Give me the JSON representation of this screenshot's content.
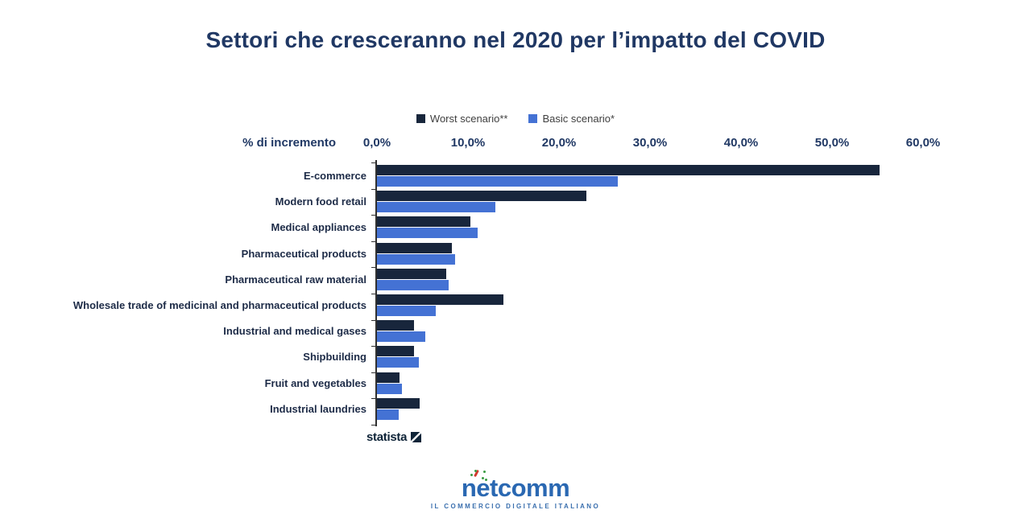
{
  "title": "Settori che cresceranno nel 2020 per l’impatto del COVID",
  "axis": {
    "x_title": "% di incremento"
  },
  "chart_data": {
    "type": "bar",
    "orientation": "horizontal",
    "title": "Settori che cresceranno nel 2020 per l’impatto del COVID",
    "xlabel": "% di incremento",
    "xlim": [
      0,
      60
    ],
    "x_tick_values": [
      0,
      10,
      20,
      30,
      40,
      50,
      60
    ],
    "x_tick_labels": [
      "0,0%",
      "10,0%",
      "20,0%",
      "30,0%",
      "40,0%",
      "50,0%",
      "60,0%"
    ],
    "grid": false,
    "legend_position": "top",
    "categories": [
      "E-commerce",
      "Modern food retail",
      "Medical appliances",
      "Pharmaceutical products",
      "Pharmaceutical raw material",
      "Wholesale trade of medicinal and pharmaceutical products",
      "Industrial and medical gases",
      "Shipbuilding",
      "Fruit and vegetables",
      "Industrial laundries"
    ],
    "series": [
      {
        "name": "Worst scenario**",
        "color": "#18263c",
        "values": [
          55.2,
          23.0,
          10.3,
          8.2,
          7.6,
          13.9,
          4.1,
          4.1,
          2.5,
          4.7
        ]
      },
      {
        "name": "Basic scenario*",
        "color": "#4472d4",
        "values": [
          26.5,
          13.0,
          11.1,
          8.6,
          7.9,
          6.5,
          5.3,
          4.6,
          2.7,
          2.4
        ]
      }
    ]
  },
  "footer": {
    "statista_label": "statista",
    "netcomm_label": "netcomm",
    "netcomm_subtitle": "IL COMMERCIO DIGITALE ITALIANO"
  }
}
